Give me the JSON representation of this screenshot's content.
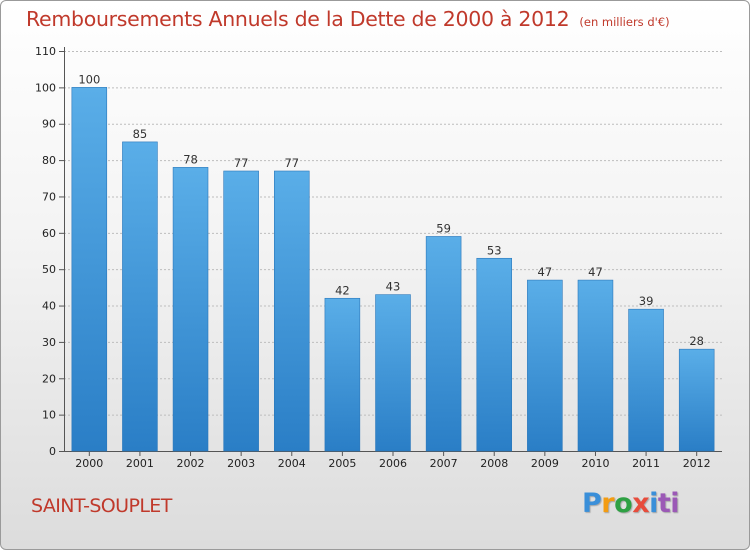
{
  "chart_data": {
    "type": "bar",
    "title": "Remboursements Annuels de la Dette de 2000 à 2012",
    "subtitle": "(en milliers d'€)",
    "categories": [
      "2000",
      "2001",
      "2002",
      "2003",
      "2004",
      "2005",
      "2006",
      "2007",
      "2008",
      "2009",
      "2010",
      "2011",
      "2012"
    ],
    "values": [
      100,
      85,
      78,
      77,
      77,
      42,
      43,
      59,
      53,
      47,
      47,
      39,
      28
    ],
    "ylim": [
      0,
      110
    ],
    "yticks": [
      0,
      10,
      20,
      30,
      40,
      50,
      60,
      70,
      80,
      90,
      100,
      110
    ],
    "grid": true,
    "bar_color_top": "#5aaee8",
    "bar_color_bottom": "#2a7ec6",
    "title_color": "#c0392b"
  },
  "footer": {
    "commune": "SAINT-SOUPLET",
    "logo_letters": [
      "P",
      "r",
      "o",
      "x",
      "i",
      "ti"
    ]
  }
}
